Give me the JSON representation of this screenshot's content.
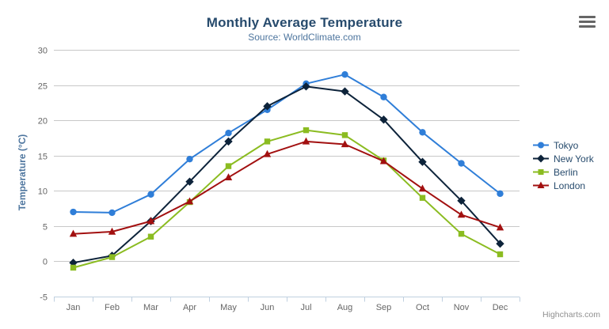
{
  "chart": {
    "title": "Monthly Average Temperature",
    "subtitle": "Source: WorldClimate.com",
    "y_axis_title": "Temperature (°C)",
    "credits": "Highcharts.com"
  },
  "export_menu": {
    "icon": "hamburger-icon"
  },
  "chart_data": {
    "type": "line",
    "title": "Monthly Average Temperature",
    "subtitle": "Source: WorldClimate.com",
    "xlabel": "",
    "ylabel": "Temperature (°C)",
    "ylim": [
      -5,
      30
    ],
    "y_ticks": [
      -5,
      0,
      5,
      10,
      15,
      20,
      25,
      30
    ],
    "grid": true,
    "legend_position": "right",
    "categories": [
      "Jan",
      "Feb",
      "Mar",
      "Apr",
      "May",
      "Jun",
      "Jul",
      "Aug",
      "Sep",
      "Oct",
      "Nov",
      "Dec"
    ],
    "series": [
      {
        "name": "Tokyo",
        "color": "#2f7ed8",
        "marker": "circle",
        "values": [
          7.0,
          6.9,
          9.5,
          14.5,
          18.2,
          21.5,
          25.2,
          26.5,
          23.3,
          18.3,
          13.9,
          9.6
        ]
      },
      {
        "name": "New York",
        "color": "#0d233a",
        "marker": "diamond",
        "values": [
          -0.2,
          0.8,
          5.7,
          11.3,
          17.0,
          22.0,
          24.8,
          24.1,
          20.1,
          14.1,
          8.6,
          2.5
        ]
      },
      {
        "name": "Berlin",
        "color": "#8bbc21",
        "marker": "square",
        "values": [
          -0.9,
          0.6,
          3.5,
          8.4,
          13.5,
          17.0,
          18.6,
          17.9,
          14.3,
          9.0,
          3.9,
          1.0
        ]
      },
      {
        "name": "London",
        "color": "#a21010",
        "marker": "triangle",
        "values": [
          3.9,
          4.2,
          5.7,
          8.5,
          11.9,
          15.2,
          17.0,
          16.6,
          14.2,
          10.3,
          6.6,
          4.8
        ]
      }
    ]
  },
  "style": {
    "title_color": "#274b6d",
    "subtitle_color": "#4d759e",
    "axis_label_color": "#666666",
    "axis_title_color": "#4d759e",
    "legend_text_color": "#274b6d",
    "grid_color": "#c8c8c8",
    "axis_line_color": "#c0d0e0",
    "credits_color": "#909090",
    "menu_icon_color": "#666666",
    "background": "#ffffff"
  }
}
